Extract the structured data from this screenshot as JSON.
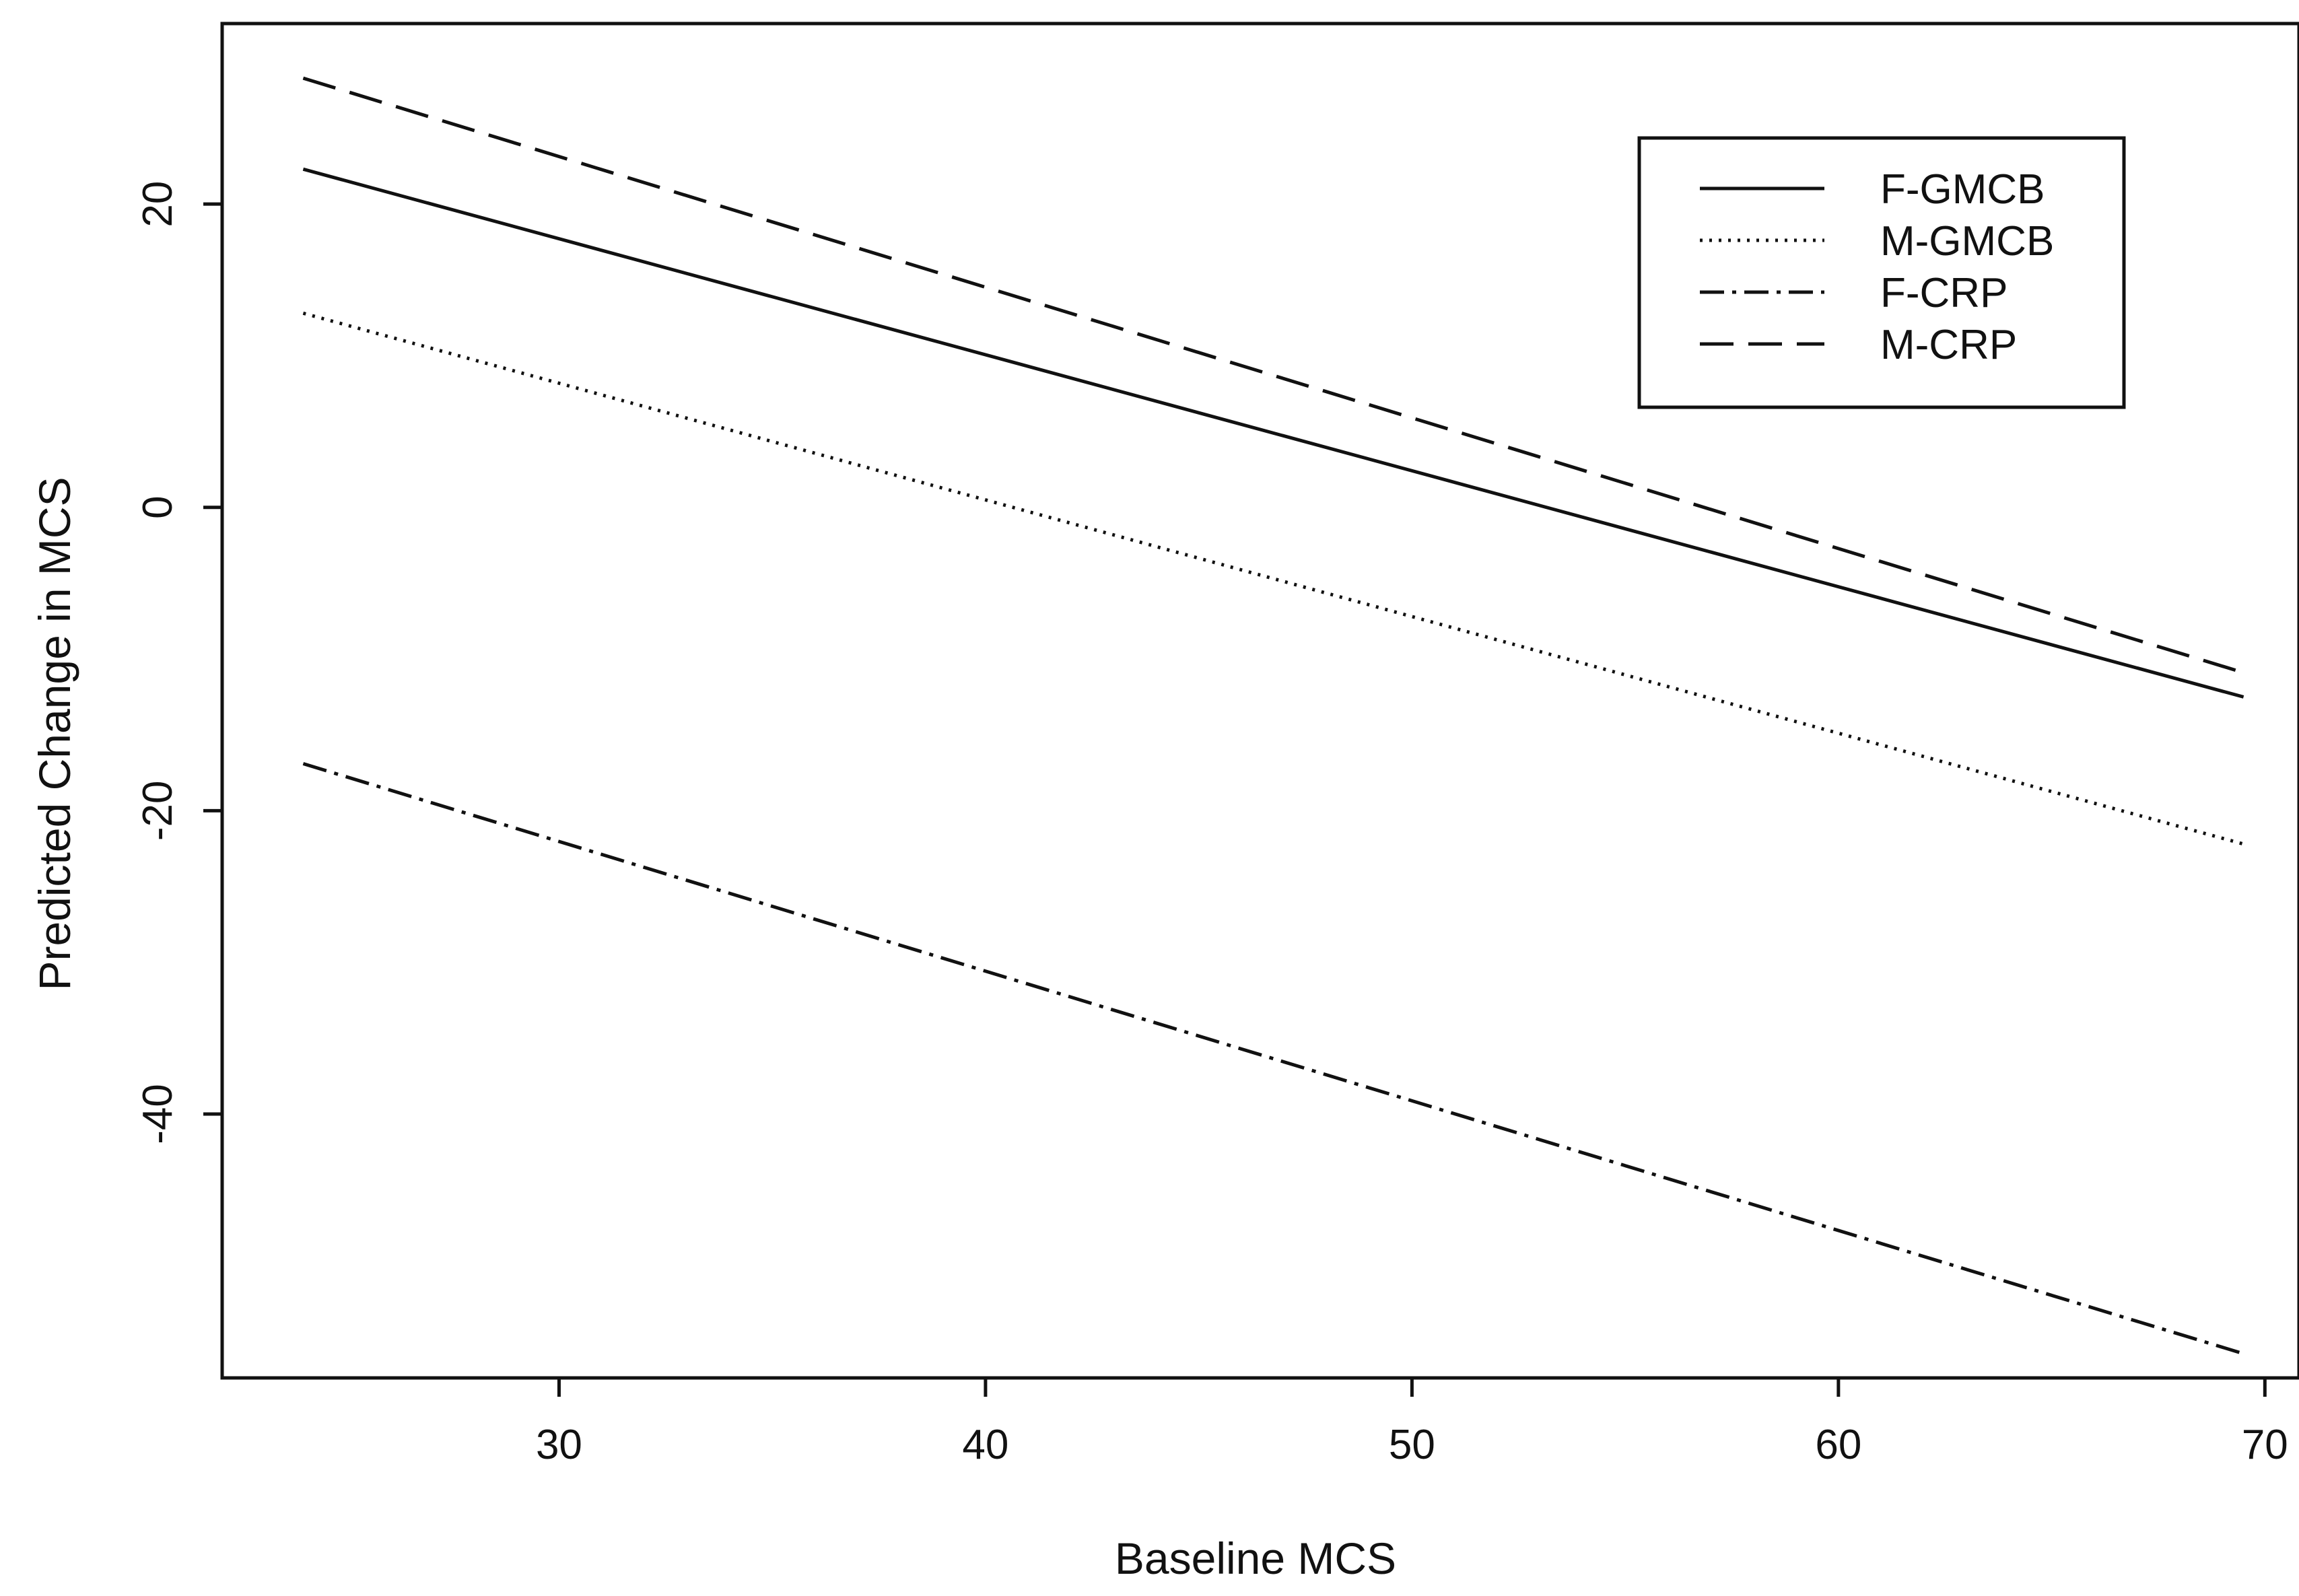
{
  "chart_data": {
    "type": "line",
    "title": "",
    "xlabel": "Baseline MCS",
    "ylabel": "Predicted Change in MCS",
    "xlim": [
      22.1,
      70.8
    ],
    "ylim": [
      -57.4,
      31.9
    ],
    "xticks": [
      30,
      40,
      50,
      60,
      70
    ],
    "yticks": [
      -40,
      -20,
      0,
      20
    ],
    "grid": false,
    "legend_position": "top-right",
    "series": [
      {
        "name": "F-GMCB",
        "style": "solid",
        "color": "#111111",
        "x": [
          24,
          69.5
        ],
        "y": [
          22.3,
          -12.5
        ]
      },
      {
        "name": "M-GMCB",
        "style": "dotted",
        "color": "#111111",
        "x": [
          24,
          69.5
        ],
        "y": [
          12.8,
          -22.2
        ]
      },
      {
        "name": "F-CRP",
        "style": "dashdot",
        "color": "#111111",
        "x": [
          24,
          69.5
        ],
        "y": [
          -16.9,
          -55.8
        ]
      },
      {
        "name": "M-CRP",
        "style": "dashed",
        "color": "#111111",
        "x": [
          24,
          69.5
        ],
        "y": [
          28.3,
          -10.9
        ]
      }
    ]
  }
}
